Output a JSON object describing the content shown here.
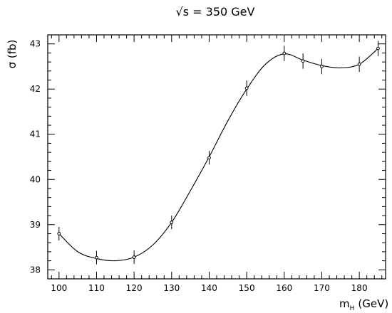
{
  "chart_data": {
    "type": "scatter",
    "title": "√s = 350 GeV",
    "xlabel": "m",
    "xlabel_subscript": "H",
    "xlabel_unit": "(GeV)",
    "ylabel": "σ (fb)",
    "xlim": [
      97,
      187
    ],
    "ylim": [
      37.8,
      43.2
    ],
    "xticks": [
      "100",
      "110",
      "120",
      "130",
      "140",
      "150",
      "160",
      "170",
      "180"
    ],
    "yticks": [
      "38",
      "39",
      "40",
      "41",
      "42",
      "43"
    ],
    "grid": false,
    "points": [
      {
        "x": 100,
        "y": 38.8,
        "err": 0.15
      },
      {
        "x": 110,
        "y": 38.27,
        "err": 0.15
      },
      {
        "x": 120,
        "y": 38.28,
        "err": 0.15
      },
      {
        "x": 130,
        "y": 39.05,
        "err": 0.15
      },
      {
        "x": 140,
        "y": 40.48,
        "err": 0.15
      },
      {
        "x": 150,
        "y": 42.02,
        "err": 0.17
      },
      {
        "x": 160,
        "y": 42.79,
        "err": 0.17
      },
      {
        "x": 165,
        "y": 42.62,
        "err": 0.17
      },
      {
        "x": 170,
        "y": 42.5,
        "err": 0.17
      },
      {
        "x": 180,
        "y": 42.55,
        "err": 0.17
      },
      {
        "x": 185,
        "y": 42.9,
        "err": 0.17
      }
    ],
    "fit_curve": [
      [
        100,
        38.8
      ],
      [
        105,
        38.4
      ],
      [
        110,
        38.25
      ],
      [
        115,
        38.2
      ],
      [
        120,
        38.28
      ],
      [
        125,
        38.55
      ],
      [
        130,
        39.05
      ],
      [
        135,
        39.75
      ],
      [
        140,
        40.5
      ],
      [
        145,
        41.3
      ],
      [
        150,
        42.0
      ],
      [
        155,
        42.55
      ],
      [
        160,
        42.78
      ],
      [
        165,
        42.64
      ],
      [
        170,
        42.52
      ],
      [
        175,
        42.47
      ],
      [
        180,
        42.55
      ],
      [
        185,
        42.9
      ]
    ]
  }
}
